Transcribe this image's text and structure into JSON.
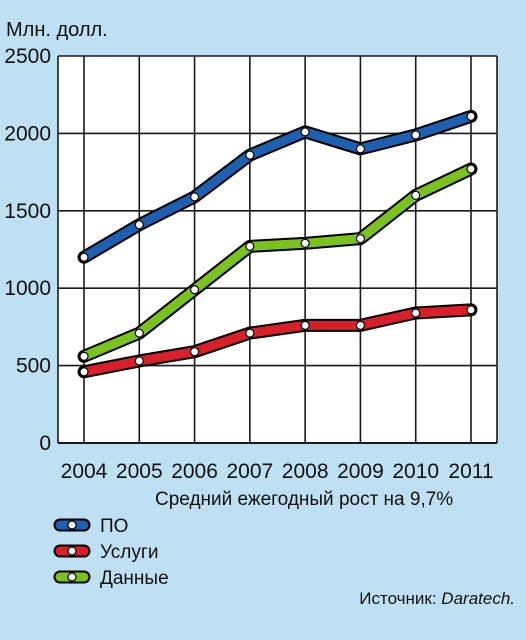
{
  "chart_data": {
    "type": "line",
    "ylabel": "Млн. долл.",
    "subtitle": "Средний ежегодный рост на 9,7%",
    "source_prefix": "Источник: ",
    "source_name": "Daratech.",
    "ylim": [
      0,
      2500
    ],
    "yticks": [
      0,
      500,
      1000,
      1500,
      2000,
      2500
    ],
    "categories": [
      "2004",
      "2005",
      "2006",
      "2007",
      "2008",
      "2009",
      "2010",
      "2011"
    ],
    "grid": true,
    "legend_position": "bottom-left",
    "series": [
      {
        "name": "ПО",
        "color": "#1d5fb0",
        "values": [
          1200,
          1410,
          1590,
          1860,
          2010,
          1900,
          1990,
          2110
        ]
      },
      {
        "name": "Услуги",
        "color": "#d81f2a",
        "values": [
          460,
          530,
          590,
          710,
          760,
          760,
          840,
          860
        ]
      },
      {
        "name": "Данные",
        "color": "#7cc21e",
        "values": [
          560,
          710,
          990,
          1270,
          1290,
          1320,
          1600,
          1770
        ]
      }
    ]
  }
}
